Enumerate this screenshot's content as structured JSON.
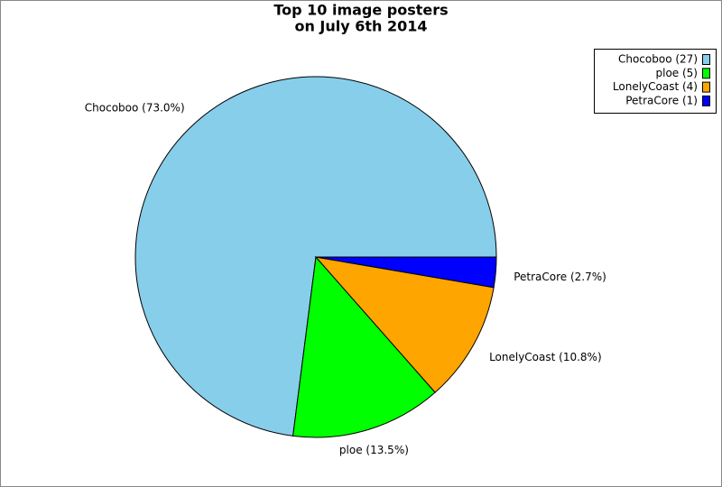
{
  "chart_data": {
    "type": "pie",
    "title": [
      "Top 10 image posters",
      "on July 6th 2014"
    ],
    "categories": [
      "Chocoboo (27)",
      "ploe (5)",
      "LonelyCoast (4)",
      "PetraCore (1)"
    ],
    "values": [
      27,
      5,
      4,
      1
    ],
    "value_labels": [
      "Chocoboo (73.0%)",
      "ploe (13.5%)",
      "LonelyCoast (10.8%)",
      "PetraCore (2.7%)"
    ],
    "colors": [
      "#87ceeb",
      "#00ff00",
      "#ffa500",
      "#0000ff"
    ],
    "legend": "top-right"
  }
}
